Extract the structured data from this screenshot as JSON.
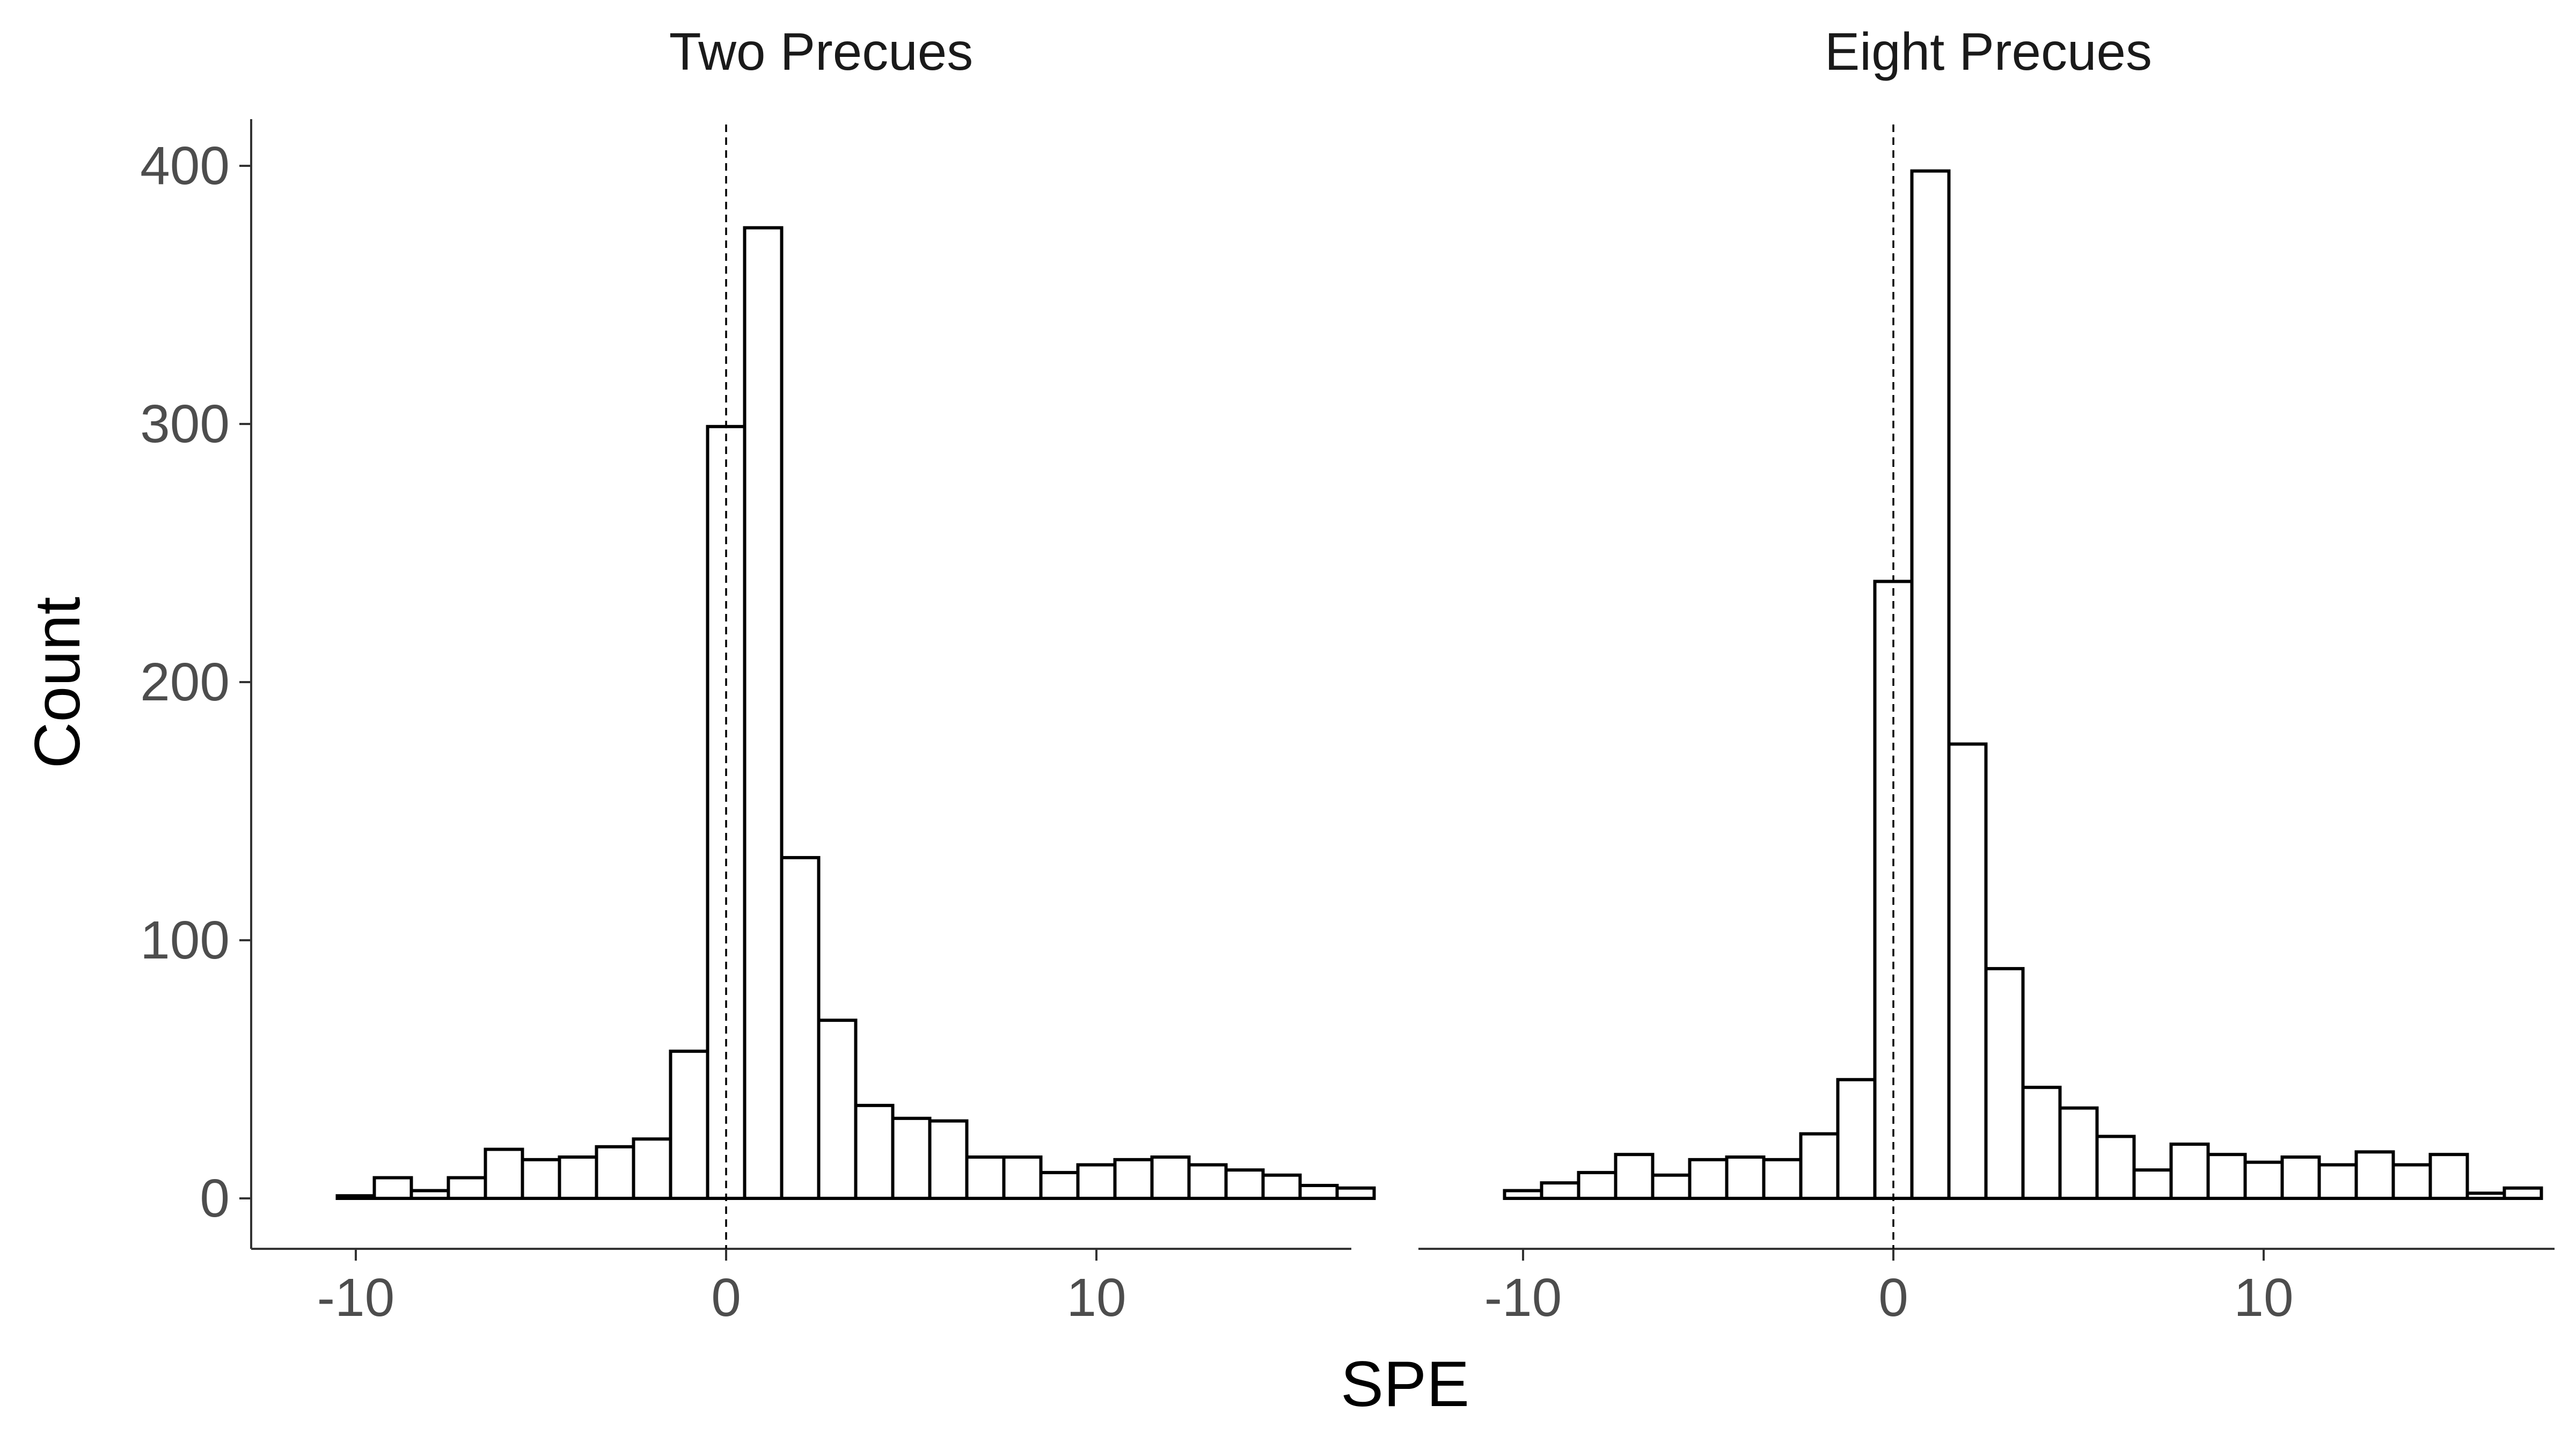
{
  "chart_data": {
    "type": "bar",
    "xlabel": "SPE",
    "ylabel": "Count",
    "xlim": [
      -10.5,
      18.5
    ],
    "ylim": [
      0,
      410
    ],
    "x_ticks": [
      -10,
      0,
      10
    ],
    "y_ticks": [
      0,
      100,
      200,
      300,
      400
    ],
    "grid": false,
    "reference_line": {
      "x": 0,
      "style": "dashed"
    },
    "bin_width": 1,
    "panels": [
      {
        "title": "Two Precues",
        "bin_centers": [
          -10,
          -9,
          -8,
          -7,
          -6,
          -5,
          -4,
          -3,
          -2,
          -1,
          0,
          1,
          2,
          3,
          4,
          5,
          6,
          7,
          8,
          9,
          10,
          11,
          12,
          13,
          14,
          15,
          16,
          17
        ],
        "values": [
          1,
          8,
          3,
          8,
          19,
          15,
          16,
          20,
          23,
          57,
          299,
          376,
          132,
          69,
          36,
          31,
          30,
          16,
          16,
          10,
          13,
          15,
          16,
          13,
          11,
          9,
          5,
          4
        ]
      },
      {
        "title": "Eight Precues",
        "bin_centers": [
          -10,
          -9,
          -8,
          -7,
          -6,
          -5,
          -4,
          -3,
          -2,
          -1,
          0,
          1,
          2,
          3,
          4,
          5,
          6,
          7,
          8,
          9,
          10,
          11,
          12,
          13,
          14,
          15,
          16,
          17
        ],
        "values": [
          3,
          6,
          10,
          17,
          9,
          15,
          16,
          15,
          25,
          46,
          239,
          398,
          176,
          89,
          43,
          35,
          24,
          11,
          21,
          17,
          14,
          16,
          13,
          18,
          13,
          17,
          2,
          4
        ]
      }
    ]
  }
}
